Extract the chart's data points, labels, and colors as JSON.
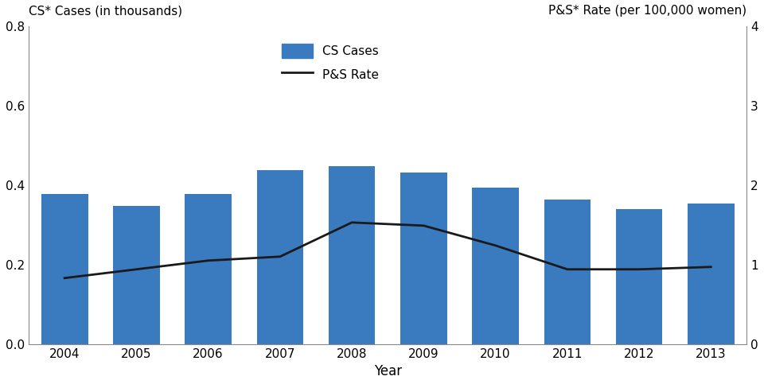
{
  "years": [
    2004,
    2005,
    2006,
    2007,
    2008,
    2009,
    2010,
    2011,
    2012,
    2013
  ],
  "cs_cases": [
    0.378,
    0.347,
    0.378,
    0.438,
    0.447,
    0.431,
    0.393,
    0.363,
    0.34,
    0.353
  ],
  "ps_rate_right": [
    0.83,
    0.94,
    1.05,
    1.1,
    1.53,
    1.49,
    1.24,
    0.94,
    0.94,
    0.97
  ],
  "bar_color": "#3a7abf",
  "line_color": "#1a1a1a",
  "ylabel_left": "CS* Cases (in thousands)",
  "ylabel_right": "P&S* Rate (per 100,000 women)",
  "xlabel": "Year",
  "ylim_left": [
    0,
    0.8
  ],
  "ylim_right": [
    0,
    4
  ],
  "yticks_left": [
    0.0,
    0.2,
    0.4,
    0.6,
    0.8
  ],
  "yticks_right": [
    0,
    1,
    2,
    3,
    4
  ],
  "legend_cs": "CS Cases",
  "legend_ps": "P&S Rate",
  "bg_color": "#ffffff",
  "bar_width": 0.65,
  "spine_color": "#888888"
}
